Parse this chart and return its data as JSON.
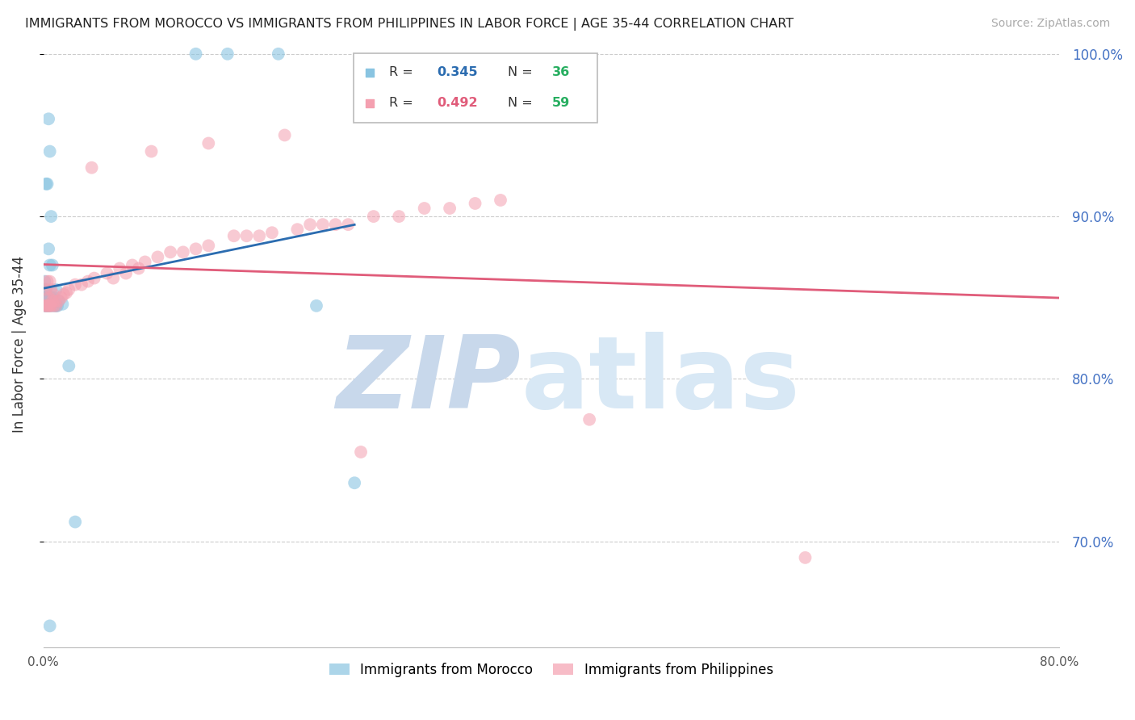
{
  "title": "IMMIGRANTS FROM MOROCCO VS IMMIGRANTS FROM PHILIPPINES IN LABOR FORCE | AGE 35-44 CORRELATION CHART",
  "source": "Source: ZipAtlas.com",
  "ylabel": "In Labor Force | Age 35-44",
  "x_min": 0.0,
  "x_max": 0.8,
  "y_min": 0.635,
  "y_max": 1.008,
  "morocco_color": "#89c4e1",
  "philippines_color": "#f4a0b0",
  "morocco_line_color": "#2b6cb0",
  "philippines_line_color": "#e05c7a",
  "morocco_R": 0.345,
  "morocco_N": 36,
  "philippines_R": 0.492,
  "philippines_N": 59,
  "legend_R_color_mor": "#2b6cb0",
  "legend_R_color_phi": "#e05c7a",
  "legend_N_color": "#27ae60",
  "ytick_positions": [
    0.7,
    0.8,
    0.9,
    1.0
  ],
  "ytick_labels": [
    "70.0%",
    "80.0%",
    "90.0%",
    "100.0%"
  ],
  "xtick_positions": [
    0.0,
    0.1,
    0.2,
    0.3,
    0.4,
    0.5,
    0.6,
    0.7,
    0.8
  ],
  "xtick_labels": [
    "0.0%",
    "",
    "",
    "",
    "",
    "",
    "",
    "",
    "80.0%"
  ],
  "watermark_zip": "ZIP",
  "watermark_atlas": "atlas",
  "morocco_x": [
    0.001,
    0.001,
    0.001,
    0.001,
    0.002,
    0.002,
    0.002,
    0.002,
    0.003,
    0.003,
    0.003,
    0.004,
    0.004,
    0.004,
    0.005,
    0.005,
    0.005,
    0.006,
    0.006,
    0.007,
    0.007,
    0.008,
    0.009,
    0.01,
    0.01,
    0.011,
    0.012,
    0.015,
    0.02,
    0.025,
    0.12,
    0.145,
    0.185,
    0.215,
    0.245,
    0.005
  ],
  "morocco_y": [
    0.845,
    0.85,
    0.855,
    0.86,
    0.845,
    0.85,
    0.855,
    0.92,
    0.845,
    0.85,
    0.92,
    0.845,
    0.88,
    0.96,
    0.845,
    0.87,
    0.94,
    0.85,
    0.9,
    0.845,
    0.87,
    0.85,
    0.845,
    0.845,
    0.855,
    0.845,
    0.848,
    0.846,
    0.808,
    0.712,
    1.0,
    1.0,
    1.0,
    0.845,
    0.736,
    0.648
  ],
  "philippines_x": [
    0.001,
    0.002,
    0.002,
    0.003,
    0.003,
    0.004,
    0.004,
    0.005,
    0.005,
    0.006,
    0.006,
    0.007,
    0.008,
    0.008,
    0.009,
    0.01,
    0.012,
    0.014,
    0.016,
    0.018,
    0.02,
    0.025,
    0.03,
    0.035,
    0.04,
    0.05,
    0.055,
    0.06,
    0.065,
    0.07,
    0.075,
    0.08,
    0.09,
    0.1,
    0.11,
    0.12,
    0.13,
    0.15,
    0.16,
    0.17,
    0.18,
    0.2,
    0.21,
    0.22,
    0.23,
    0.24,
    0.26,
    0.28,
    0.3,
    0.32,
    0.34,
    0.36,
    0.038,
    0.085,
    0.13,
    0.19,
    0.25,
    0.43,
    0.6
  ],
  "philippines_y": [
    0.845,
    0.845,
    0.855,
    0.845,
    0.86,
    0.845,
    0.85,
    0.845,
    0.86,
    0.845,
    0.855,
    0.848,
    0.845,
    0.852,
    0.848,
    0.845,
    0.848,
    0.85,
    0.852,
    0.853,
    0.855,
    0.858,
    0.858,
    0.86,
    0.862,
    0.865,
    0.862,
    0.868,
    0.865,
    0.87,
    0.868,
    0.872,
    0.875,
    0.878,
    0.878,
    0.88,
    0.882,
    0.888,
    0.888,
    0.888,
    0.89,
    0.892,
    0.895,
    0.895,
    0.895,
    0.895,
    0.9,
    0.9,
    0.905,
    0.905,
    0.908,
    0.91,
    0.93,
    0.94,
    0.945,
    0.95,
    0.755,
    0.775,
    0.69
  ]
}
